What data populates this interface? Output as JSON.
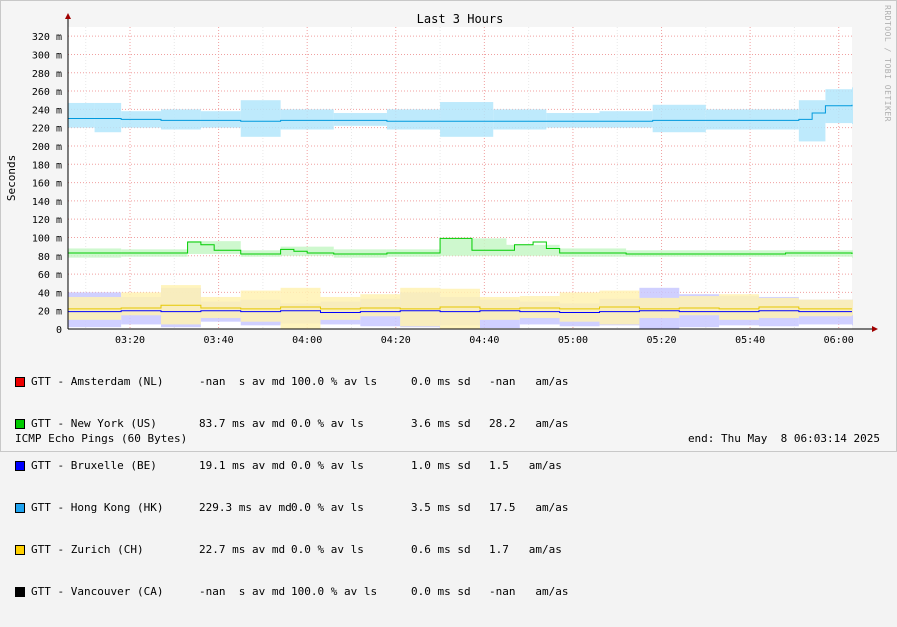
{
  "chart_data": {
    "type": "line",
    "title": "Last 3 Hours",
    "ylabel": "Seconds",
    "xlabel": "",
    "ylim": [
      0,
      330
    ],
    "xlim": [
      "03:06",
      "06:03"
    ],
    "y_ticks": [
      "0",
      "20 m",
      "40 m",
      "60 m",
      "80 m",
      "100 m",
      "120 m",
      "140 m",
      "160 m",
      "180 m",
      "200 m",
      "220 m",
      "240 m",
      "260 m",
      "280 m",
      "300 m",
      "320 m"
    ],
    "x_ticks": [
      "03:20",
      "03:40",
      "04:00",
      "04:20",
      "04:40",
      "05:00",
      "05:20",
      "05:40",
      "06:00"
    ],
    "grid": true,
    "series": [
      {
        "name": "GTT - Amsterdam (NL)",
        "color": "#ee0000",
        "points": [],
        "smoke": []
      },
      {
        "name": "GTT - New York (US)",
        "color": "#00cc00",
        "smoke_color": "#c6f7c6",
        "points": [
          [
            3.1,
            83
          ],
          [
            3.3,
            83
          ],
          [
            3.45,
            83
          ],
          [
            3.55,
            95
          ],
          [
            3.6,
            92
          ],
          [
            3.65,
            86
          ],
          [
            3.75,
            82
          ],
          [
            3.85,
            82
          ],
          [
            3.9,
            87
          ],
          [
            3.95,
            85
          ],
          [
            4.0,
            83
          ],
          [
            4.1,
            82
          ],
          [
            4.3,
            83
          ],
          [
            4.45,
            83
          ],
          [
            4.5,
            99
          ],
          [
            4.6,
            99
          ],
          [
            4.62,
            86
          ],
          [
            4.75,
            86
          ],
          [
            4.78,
            92
          ],
          [
            4.85,
            95
          ],
          [
            4.9,
            88
          ],
          [
            4.95,
            83
          ],
          [
            5.2,
            82
          ],
          [
            5.5,
            82
          ],
          [
            5.8,
            83
          ],
          [
            6.05,
            82
          ]
        ],
        "smoke": [
          [
            3.1,
            78,
            88
          ],
          [
            3.3,
            79,
            87
          ],
          [
            3.55,
            82,
            96
          ],
          [
            3.75,
            79,
            86
          ],
          [
            3.9,
            80,
            90
          ],
          [
            4.1,
            78,
            87
          ],
          [
            4.3,
            79,
            87
          ],
          [
            4.5,
            80,
            99
          ],
          [
            4.75,
            80,
            92
          ],
          [
            4.95,
            79,
            88
          ],
          [
            5.2,
            79,
            86
          ],
          [
            5.5,
            79,
            86
          ],
          [
            5.8,
            79,
            86
          ],
          [
            6.05,
            78,
            86
          ]
        ]
      },
      {
        "name": "GTT - Bruxelle (BE)",
        "color": "#0000ff",
        "smoke_color": "#c8c8ff",
        "points": [
          [
            3.1,
            19
          ],
          [
            3.3,
            20
          ],
          [
            3.45,
            19
          ],
          [
            3.6,
            20
          ],
          [
            3.75,
            19
          ],
          [
            3.9,
            20
          ],
          [
            4.05,
            18
          ],
          [
            4.2,
            19
          ],
          [
            4.35,
            20
          ],
          [
            4.5,
            19
          ],
          [
            4.65,
            20
          ],
          [
            4.8,
            19
          ],
          [
            4.95,
            18
          ],
          [
            5.1,
            19
          ],
          [
            5.25,
            20
          ],
          [
            5.4,
            19
          ],
          [
            5.55,
            19
          ],
          [
            5.7,
            20
          ],
          [
            5.85,
            19
          ],
          [
            6.05,
            19
          ]
        ],
        "smoke": [
          [
            3.1,
            2,
            40
          ],
          [
            3.3,
            5,
            35
          ],
          [
            3.45,
            2,
            45
          ],
          [
            3.6,
            8,
            30
          ],
          [
            3.75,
            4,
            32
          ],
          [
            3.9,
            6,
            28
          ],
          [
            4.05,
            5,
            30
          ],
          [
            4.2,
            3,
            33
          ],
          [
            4.35,
            2,
            40
          ],
          [
            4.5,
            4,
            35
          ],
          [
            4.65,
            1,
            32
          ],
          [
            4.8,
            5,
            30
          ],
          [
            4.95,
            3,
            28
          ],
          [
            5.1,
            4,
            33
          ],
          [
            5.25,
            0,
            45
          ],
          [
            5.4,
            2,
            38
          ],
          [
            5.55,
            4,
            36
          ],
          [
            5.7,
            3,
            35
          ],
          [
            5.85,
            5,
            32
          ],
          [
            6.05,
            4,
            32
          ]
        ]
      },
      {
        "name": "GTT - Hong Kong (HK)",
        "color": "#0099dd",
        "smoke_color": "#b3e6fb",
        "points": [
          [
            3.1,
            230
          ],
          [
            3.2,
            230
          ],
          [
            3.3,
            229
          ],
          [
            3.45,
            228
          ],
          [
            3.6,
            228
          ],
          [
            3.75,
            227
          ],
          [
            3.9,
            228
          ],
          [
            4.1,
            228
          ],
          [
            4.3,
            227
          ],
          [
            4.5,
            227
          ],
          [
            4.7,
            227
          ],
          [
            4.9,
            227
          ],
          [
            5.1,
            227
          ],
          [
            5.3,
            228
          ],
          [
            5.5,
            228
          ],
          [
            5.7,
            228
          ],
          [
            5.85,
            229
          ],
          [
            5.9,
            236
          ],
          [
            5.95,
            244
          ],
          [
            6.05,
            245
          ]
        ],
        "smoke": [
          [
            3.1,
            220,
            247
          ],
          [
            3.2,
            215,
            247
          ],
          [
            3.3,
            220,
            238
          ],
          [
            3.45,
            218,
            240
          ],
          [
            3.6,
            220,
            238
          ],
          [
            3.75,
            210,
            250
          ],
          [
            3.9,
            218,
            240
          ],
          [
            4.1,
            222,
            236
          ],
          [
            4.3,
            218,
            240
          ],
          [
            4.5,
            210,
            248
          ],
          [
            4.7,
            218,
            240
          ],
          [
            4.9,
            220,
            236
          ],
          [
            5.1,
            220,
            238
          ],
          [
            5.3,
            215,
            245
          ],
          [
            5.5,
            218,
            240
          ],
          [
            5.7,
            218,
            240
          ],
          [
            5.85,
            205,
            250
          ],
          [
            5.95,
            225,
            262
          ],
          [
            6.05,
            224,
            264
          ]
        ]
      },
      {
        "name": "GTT - Zurich (CH)",
        "color": "#e6c800",
        "smoke_color": "#fff2b3",
        "points": [
          [
            3.1,
            22
          ],
          [
            3.3,
            23
          ],
          [
            3.45,
            26
          ],
          [
            3.6,
            23
          ],
          [
            3.75,
            22
          ],
          [
            3.9,
            24
          ],
          [
            4.05,
            22
          ],
          [
            4.2,
            23
          ],
          [
            4.35,
            22
          ],
          [
            4.5,
            24
          ],
          [
            4.65,
            22
          ],
          [
            4.8,
            23
          ],
          [
            4.95,
            22
          ],
          [
            5.1,
            24
          ],
          [
            5.25,
            22
          ],
          [
            5.4,
            23
          ],
          [
            5.55,
            22
          ],
          [
            5.7,
            24
          ],
          [
            5.85,
            22
          ],
          [
            6.05,
            22
          ]
        ],
        "smoke": [
          [
            3.1,
            10,
            35
          ],
          [
            3.3,
            15,
            40
          ],
          [
            3.45,
            5,
            48
          ],
          [
            3.6,
            12,
            35
          ],
          [
            3.75,
            8,
            42
          ],
          [
            3.9,
            0,
            45
          ],
          [
            4.05,
            10,
            35
          ],
          [
            4.2,
            14,
            38
          ],
          [
            4.35,
            3,
            45
          ],
          [
            4.5,
            0,
            44
          ],
          [
            4.65,
            10,
            35
          ],
          [
            4.8,
            12,
            36
          ],
          [
            4.95,
            8,
            40
          ],
          [
            5.1,
            5,
            42
          ],
          [
            5.25,
            12,
            34
          ],
          [
            5.4,
            15,
            36
          ],
          [
            5.55,
            10,
            38
          ],
          [
            5.7,
            12,
            34
          ],
          [
            5.85,
            14,
            32
          ],
          [
            6.05,
            15,
            32
          ]
        ]
      },
      {
        "name": "GTT - Vancouver (CA)",
        "color": "#000000",
        "points": [],
        "smoke": []
      }
    ]
  },
  "legend": [
    {
      "name": "GTT - Amsterdam (NL)",
      "color": "#ee0000",
      "avg": "-nan  s av md",
      "loss": "100.0 % av ls",
      "sd": "0.0 ms sd",
      "amas": "-nan   am/as"
    },
    {
      "name": "GTT - New York (US)",
      "color": "#00cc00",
      "avg": "83.7 ms av md",
      "loss": "0.0 % av ls",
      "sd": "3.6 ms sd",
      "amas": "28.2   am/as"
    },
    {
      "name": "GTT - Bruxelle (BE)",
      "color": "#0000ff",
      "avg": "19.1 ms av md",
      "loss": "0.0 % av ls",
      "sd": "1.0 ms sd",
      "amas": "1.5   am/as"
    },
    {
      "name": "GTT - Hong Kong (HK)",
      "color": "#1fa3ef",
      "avg": "229.3 ms av md",
      "loss": "0.0 % av ls",
      "sd": "3.5 ms sd",
      "amas": "17.5   am/as"
    },
    {
      "name": "GTT - Zurich (CH)",
      "color": "#ffd000",
      "avg": "22.7 ms av md",
      "loss": "0.0 % av ls",
      "sd": "0.6 ms sd",
      "amas": "1.7   am/as"
    },
    {
      "name": "GTT - Vancouver (CA)",
      "color": "#000000",
      "avg": "-nan  s av md",
      "loss": "100.0 % av ls",
      "sd": "0.0 ms sd",
      "amas": "-nan   am/as"
    }
  ],
  "footer": {
    "left": "ICMP Echo Pings (60 Bytes)",
    "right": "end: Thu May  8 06:03:14 2025"
  },
  "watermark": "RRDTOOL / TOBI OETIKER"
}
